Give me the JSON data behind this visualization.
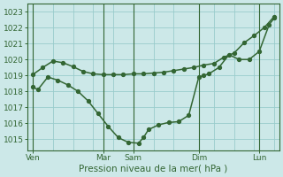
{
  "background_color": "#cce8e8",
  "plot_bg_color": "#cce8e8",
  "grid_color": "#99cccc",
  "line_color": "#336633",
  "xlabel": "Pression niveau de la mer( hPa )",
  "ylim": [
    1014.3,
    1023.5
  ],
  "yticks": [
    1015,
    1016,
    1017,
    1018,
    1019,
    1020,
    1021,
    1022,
    1023
  ],
  "x_day_labels": [
    "Ven",
    "Mar",
    "Sam",
    "Dim",
    "Lun"
  ],
  "x_day_positions": [
    0.0,
    7.0,
    10.0,
    16.5,
    22.5
  ],
  "xlim": [
    -0.5,
    24.5
  ],
  "line1_x": [
    0,
    0.5,
    1.5,
    2.5,
    3.5,
    4.5,
    5.5,
    6.5,
    7.5,
    8.5,
    9.5,
    10.5,
    11.0,
    11.5,
    12.5,
    13.5,
    14.5,
    15.5,
    16.5,
    17.0,
    17.5,
    18.5,
    19.5,
    20.5,
    21.5,
    22.5,
    23.5,
    24
  ],
  "line1_y": [
    1018.3,
    1018.1,
    1018.9,
    1018.7,
    1018.4,
    1018.0,
    1017.4,
    1016.6,
    1015.8,
    1015.1,
    1014.8,
    1014.75,
    1015.1,
    1015.6,
    1015.9,
    1016.05,
    1016.1,
    1016.5,
    1018.9,
    1019.0,
    1019.1,
    1019.5,
    1020.3,
    1020.0,
    1020.0,
    1020.5,
    1022.2,
    1022.6
  ],
  "line2_x": [
    0,
    1,
    2,
    3,
    4,
    5,
    6,
    7,
    8,
    9,
    10,
    11,
    12,
    13,
    14,
    15,
    16,
    17,
    18,
    19,
    20,
    21,
    22,
    23,
    24
  ],
  "line2_y": [
    1019.05,
    1019.5,
    1019.9,
    1019.8,
    1019.55,
    1019.25,
    1019.1,
    1019.05,
    1019.05,
    1019.05,
    1019.1,
    1019.1,
    1019.15,
    1019.2,
    1019.3,
    1019.4,
    1019.5,
    1019.65,
    1019.75,
    1020.15,
    1020.4,
    1021.05,
    1021.5,
    1022.0,
    1022.7
  ],
  "marker_size": 2.8,
  "line_width": 1.1,
  "tick_fontsize": 6.5,
  "xlabel_fontsize": 7.5
}
